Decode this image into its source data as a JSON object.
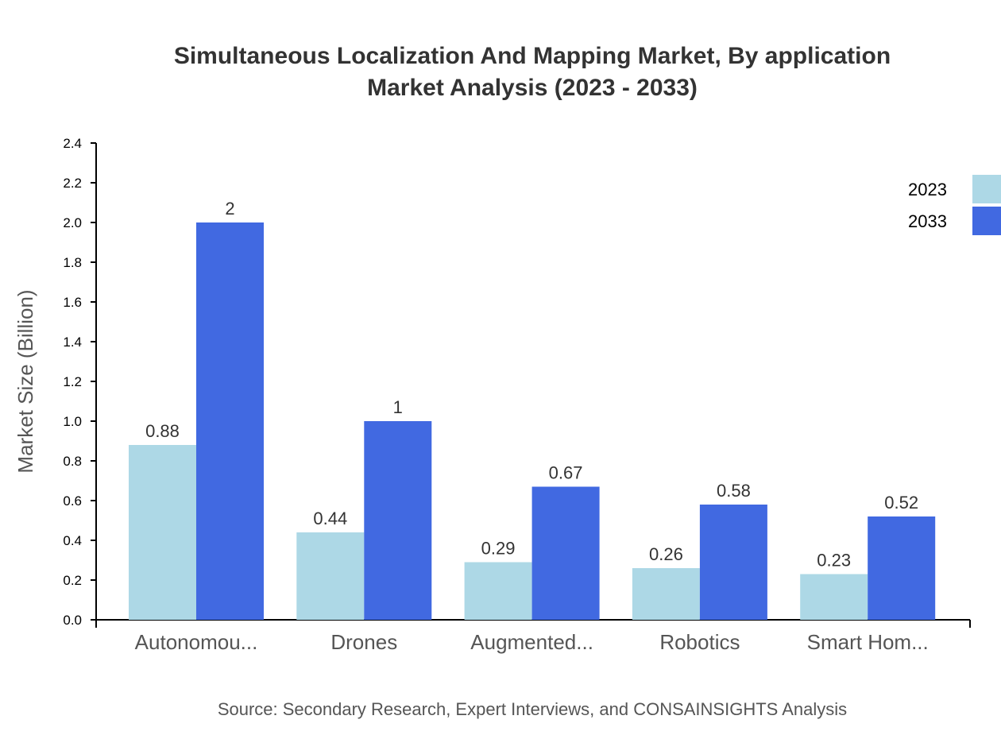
{
  "chart_data": {
    "type": "bar",
    "title": "Simultaneous Localization And Mapping Market, By application",
    "subtitle": "Market Analysis (2023 - 2033)",
    "xlabel": "",
    "ylabel": "Market Size (Billion)",
    "ylim": [
      0,
      2.4
    ],
    "yticks": [
      "0.0",
      "0.2",
      "0.4",
      "0.6",
      "0.8",
      "1.0",
      "1.2",
      "1.4",
      "1.6",
      "1.8",
      "2.0",
      "2.2",
      "2.4"
    ],
    "categories": [
      "Autonomou...",
      "Drones",
      "Augmented...",
      "Robotics",
      "Smart Hom..."
    ],
    "series": [
      {
        "name": "2023",
        "color": "#add8e6",
        "values": [
          0.88,
          0.44,
          0.29,
          0.26,
          0.23
        ]
      },
      {
        "name": "2033",
        "color": "#4169e1",
        "values": [
          2,
          1,
          0.67,
          0.58,
          0.52
        ]
      }
    ],
    "legend_position": "top-right",
    "grid": false,
    "source": "Source: Secondary Research, Expert Interviews, and CONSAINSIGHTS Analysis"
  }
}
